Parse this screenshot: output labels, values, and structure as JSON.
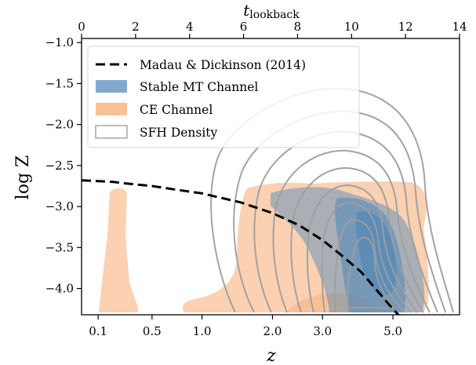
{
  "chart_data": {
    "type": "area",
    "xlabel": "z",
    "ylabel": "log Z",
    "top_xlabel": "t",
    "top_xlabel_sub": "lookback",
    "x_scale": "log(1+z)",
    "xlim": [
      0.0,
      7.8
    ],
    "ylim": [
      -4.32,
      -0.95
    ],
    "x_ticks": [
      0.1,
      0.5,
      1.0,
      2.0,
      3.0,
      5.0
    ],
    "x_tick_labels": [
      "0.1",
      "0.5",
      "1.0",
      "2.0",
      "3.0",
      "5.0"
    ],
    "y_ticks": [
      -1.0,
      -1.5,
      -2.0,
      -2.5,
      -3.0,
      -3.5,
      -4.0
    ],
    "y_tick_labels": [
      "−1.0",
      "−1.5",
      "−2.0",
      "−2.5",
      "−3.0",
      "−3.5",
      "−4.0"
    ],
    "top_ticks": [
      0,
      2,
      4,
      6,
      8,
      10,
      12,
      14
    ],
    "top_tick_labels": [
      "0",
      "2",
      "4",
      "6",
      "8",
      "10",
      "12",
      "14"
    ],
    "legend": {
      "placement": "top-left",
      "entries": [
        {
          "label": "Madau & Dickinson (2014)",
          "style": "dashed-line",
          "color": "#000000"
        },
        {
          "label": "Stable MT Channel",
          "style": "patch",
          "color": "#4a86b8"
        },
        {
          "label": "CE Channel",
          "style": "patch",
          "color": "#f9b482"
        },
        {
          "label": "SFH Density",
          "style": "outline-patch",
          "color": "#a6a6a6"
        }
      ]
    },
    "series": [
      {
        "name": "Madau & Dickinson (2014)",
        "type": "line",
        "x": [
          0.0,
          0.1,
          0.2,
          0.3,
          0.5,
          0.7,
          1.0,
          1.5,
          2.0,
          2.5,
          3.0,
          3.5,
          4.0,
          5.0,
          6.0
        ],
        "y": [
          -2.68,
          -2.69,
          -2.7,
          -2.72,
          -2.75,
          -2.79,
          -2.84,
          -2.95,
          -3.08,
          -3.23,
          -3.41,
          -3.61,
          -3.8,
          -4.25,
          -4.6
        ]
      }
    ],
    "colors": {
      "md_line": "#000000",
      "stable_mt": "#4a86b8",
      "ce": "#f9b482",
      "sfh_contour": "#9e9e9e"
    }
  }
}
